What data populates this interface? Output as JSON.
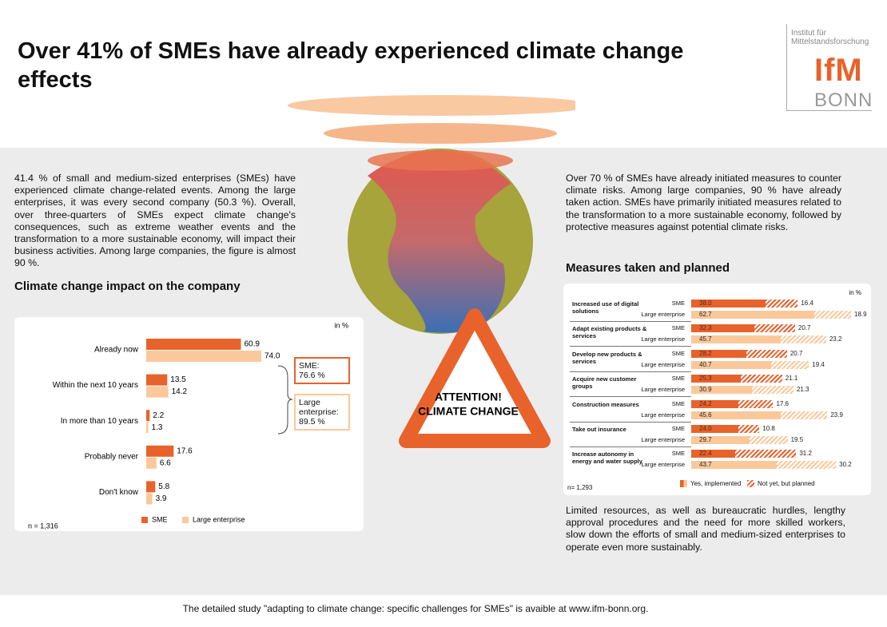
{
  "title": "Over 41% of SMEs have already experienced climate change effects",
  "logo": {
    "line1": "Institut für",
    "line2": "Mittelstandsforschung",
    "brand": "IfM",
    "city": "BONN"
  },
  "left_text": "41.4 % of small and medium-sized enterprises (SMEs) have experienced climate change-related events. Among the large enterprises, it was every second company (50.3 %). Overall, over three-quarters of SMEs expect climate change's consequences, such as extreme weather events and the transformation to a more sustainable economy, will impact their business activities. Among large companies, the figure is almost 90 %.",
  "right_text": "Over 70 % of SMEs have already initiated measures to counter climate risks. Among large companies, 90 % have already taken action. SMEs have primarily initiated measures related to the transformation to a more sustainable economy, followed by protective measures against potential climate risks.",
  "bottom_text": "Limited resources, as well as bureaucratic hurdles, lengthy approval procedures and the need for more skilled workers, slow down the efforts of small and medium-sized enterprises to operate even more sustainably.",
  "sign": {
    "line1": "ATTENTION!",
    "line2": "CLIMATE CHANGE"
  },
  "footer": "The detailed study \"adapting to climate change: specific challenges for SMEs\" is avaible at www.ifm-bonn.org.",
  "chart_data": [
    {
      "type": "bar",
      "title": "Climate change impact on the company",
      "unit": "in %",
      "note": "n = 1,316",
      "categories": [
        "Already now",
        "Within the next 10 years",
        "In more than 10 years",
        "Probably never",
        "Don't know"
      ],
      "series": [
        {
          "name": "SME",
          "color": "#e8622c",
          "values": [
            60.9,
            13.5,
            2.2,
            17.6,
            5.8
          ],
          "value_labels": [
            "60.9",
            "13.5",
            "2.2",
            "17.6",
            "5.8"
          ]
        },
        {
          "name": "Large enterprise",
          "color": "#fbc89b",
          "values": [
            74.0,
            14.2,
            1.3,
            6.6,
            3.9
          ],
          "value_labels": [
            "74.0",
            "14.2",
            "1.3",
            "6.6",
            "3.9"
          ]
        }
      ],
      "annotations": [
        {
          "label": "SME:",
          "value": "76.6 %",
          "color": "#e8622c"
        },
        {
          "label": "Large enterprise:",
          "value": "89.5 %",
          "color": "#fbc89b"
        }
      ]
    },
    {
      "type": "stacked_bar",
      "title": "Measures taken and planned",
      "unit": "in %",
      "note": "n= 1,293",
      "categories": [
        "Increased use of digital solutions",
        "Adapt existing products & services",
        "Develop new products & services",
        "Acquire new customer groups",
        "Construction measures",
        "Take out insurance",
        "Increase autonomy in energy and water supply"
      ],
      "rows": [
        "SME",
        "Large enterprise"
      ],
      "row_colors": [
        "#e8622c",
        "#fbc89b"
      ],
      "series": [
        {
          "name": "Yes, implemented",
          "hatched": false,
          "values": [
            [
              38.0,
              62.7
            ],
            [
              32.3,
              45.7
            ],
            [
              28.2,
              40.7
            ],
            [
              25.3,
              30.9
            ],
            [
              24.2,
              45.6
            ],
            [
              24.0,
              29.7
            ],
            [
              22.4,
              43.7
            ]
          ],
          "value_labels": [
            [
              "38.0",
              "62.7"
            ],
            [
              "32.3",
              "45.7"
            ],
            [
              "28.2",
              "40.7"
            ],
            [
              "25.3",
              "30.9"
            ],
            [
              "24.2",
              "45.6"
            ],
            [
              "24.0",
              "29.7"
            ],
            [
              "22.4",
              "43.7"
            ]
          ]
        },
        {
          "name": "Not yet, but planned",
          "hatched": true,
          "values": [
            [
              16.4,
              18.9
            ],
            [
              20.7,
              23.2
            ],
            [
              20.7,
              19.4
            ],
            [
              21.1,
              21.3
            ],
            [
              17.6,
              23.9
            ],
            [
              10.8,
              19.5
            ],
            [
              31.2,
              30.2
            ]
          ],
          "value_labels": [
            [
              "16.4",
              "18.9"
            ],
            [
              "20.7",
              "23.2"
            ],
            [
              "20.7",
              "19.4"
            ],
            [
              "21.1",
              "21.3"
            ],
            [
              "17.6",
              "23.9"
            ],
            [
              "10.8",
              "19.5"
            ],
            [
              "31.2",
              "30.2"
            ]
          ]
        }
      ]
    }
  ]
}
